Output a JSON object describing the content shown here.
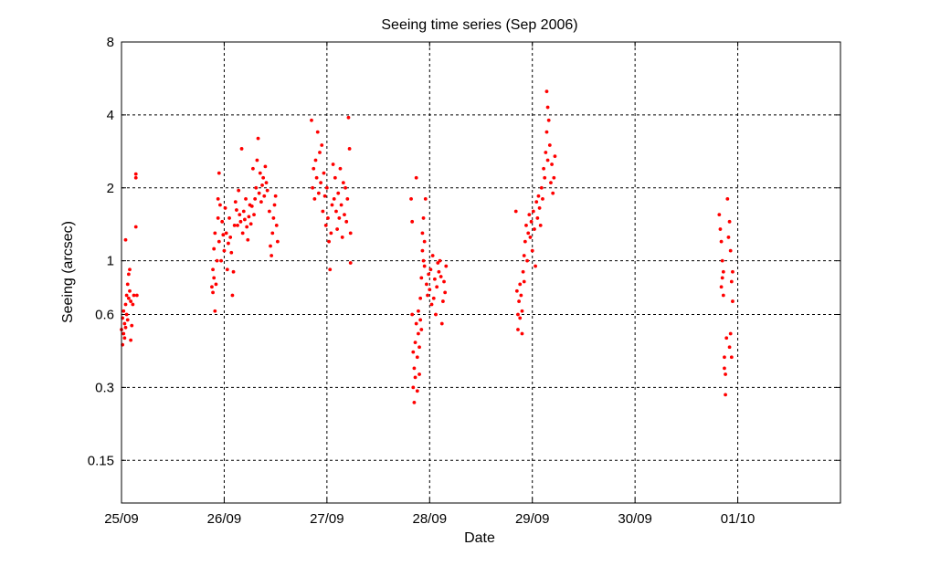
{
  "chart_data": {
    "type": "scatter",
    "title": "Seeing time series (Sep 2006)",
    "xlabel": "Date",
    "ylabel": "Seeing (arcsec)",
    "x_ticks": [
      "25/09",
      "26/09",
      "27/09",
      "28/09",
      "29/09",
      "30/09",
      "01/10"
    ],
    "x_tick_days": [
      0,
      1,
      2,
      3,
      4,
      5,
      6
    ],
    "xlim_days": [
      0,
      7
    ],
    "x_start_date": "25/09",
    "y_scale": "log2",
    "y_ticks": [
      0.15,
      0.3,
      0.6,
      1,
      2,
      4,
      8
    ],
    "y_tick_labels": [
      "0.15",
      "0.3",
      "0.6",
      "1",
      "2",
      "4",
      "8"
    ],
    "ylim": [
      0.1,
      8
    ],
    "grid": true,
    "marker_color": "#ff0000",
    "series": [
      {
        "name": "",
        "points": [
          [
            0.0,
            0.52
          ],
          [
            0.01,
            0.45
          ],
          [
            0.01,
            0.58
          ],
          [
            0.02,
            0.5
          ],
          [
            0.02,
            0.62
          ],
          [
            0.03,
            0.48
          ],
          [
            0.03,
            0.55
          ],
          [
            0.04,
            0.53
          ],
          [
            0.04,
            0.66
          ],
          [
            0.05,
            0.6
          ],
          [
            0.05,
            0.72
          ],
          [
            0.06,
            0.57
          ],
          [
            0.06,
            0.8
          ],
          [
            0.07,
            0.7
          ],
          [
            0.07,
            0.88
          ],
          [
            0.08,
            0.75
          ],
          [
            0.08,
            0.92
          ],
          [
            0.09,
            0.68
          ],
          [
            0.09,
            0.47
          ],
          [
            0.1,
            0.54
          ],
          [
            0.11,
            0.66
          ],
          [
            0.12,
            0.72
          ],
          [
            0.04,
            1.22
          ],
          [
            0.14,
            2.2
          ],
          [
            0.14,
            2.28
          ],
          [
            0.14,
            1.38
          ],
          [
            0.15,
            0.72
          ],
          [
            0.88,
            0.78
          ],
          [
            0.89,
            0.74
          ],
          [
            0.89,
            0.92
          ],
          [
            0.9,
            1.12
          ],
          [
            0.9,
            0.85
          ],
          [
            0.91,
            0.62
          ],
          [
            0.91,
            1.3
          ],
          [
            0.92,
            0.8
          ],
          [
            0.93,
            1.0
          ],
          [
            0.94,
            1.5
          ],
          [
            0.94,
            1.8
          ],
          [
            0.95,
            2.3
          ],
          [
            0.95,
            1.2
          ],
          [
            0.96,
            1.7
          ],
          [
            0.97,
            1.0
          ],
          [
            0.98,
            1.45
          ],
          [
            0.99,
            1.28
          ],
          [
            1.0,
            1.1
          ],
          [
            1.01,
            1.65
          ],
          [
            1.02,
            1.3
          ],
          [
            1.03,
            0.92
          ],
          [
            1.04,
            1.18
          ],
          [
            1.05,
            1.5
          ],
          [
            1.06,
            1.25
          ],
          [
            1.07,
            1.08
          ],
          [
            1.08,
            0.72
          ],
          [
            1.09,
            0.9
          ],
          [
            1.1,
            1.4
          ],
          [
            1.11,
            1.75
          ],
          [
            1.12,
            1.62
          ],
          [
            1.13,
            1.4
          ],
          [
            1.14,
            1.95
          ],
          [
            1.15,
            1.55
          ],
          [
            1.16,
            1.45
          ],
          [
            1.17,
            2.9
          ],
          [
            1.18,
            1.3
          ],
          [
            1.19,
            1.6
          ],
          [
            1.2,
            1.48
          ],
          [
            1.21,
            1.8
          ],
          [
            1.22,
            1.38
          ],
          [
            1.23,
            1.22
          ],
          [
            1.24,
            1.52
          ],
          [
            1.25,
            1.7
          ],
          [
            1.26,
            1.42
          ],
          [
            1.27,
            1.68
          ],
          [
            1.28,
            2.4
          ],
          [
            1.29,
            1.55
          ],
          [
            1.3,
            1.8
          ],
          [
            1.31,
            2.0
          ],
          [
            1.32,
            2.6
          ],
          [
            1.33,
            3.2
          ],
          [
            1.34,
            1.9
          ],
          [
            1.35,
            2.3
          ],
          [
            1.36,
            1.75
          ],
          [
            1.37,
            2.05
          ],
          [
            1.38,
            2.2
          ],
          [
            1.39,
            1.85
          ],
          [
            1.4,
            2.45
          ],
          [
            1.41,
            2.1
          ],
          [
            1.42,
            1.95
          ],
          [
            1.44,
            1.6
          ],
          [
            1.45,
            1.15
          ],
          [
            1.46,
            1.05
          ],
          [
            1.47,
            1.3
          ],
          [
            1.48,
            1.5
          ],
          [
            1.49,
            1.7
          ],
          [
            1.5,
            1.85
          ],
          [
            1.51,
            1.4
          ],
          [
            1.52,
            1.2
          ],
          [
            1.85,
            3.8
          ],
          [
            1.86,
            2.0
          ],
          [
            1.87,
            2.4
          ],
          [
            1.88,
            1.8
          ],
          [
            1.89,
            2.6
          ],
          [
            1.9,
            2.2
          ],
          [
            1.91,
            3.4
          ],
          [
            1.92,
            1.9
          ],
          [
            1.93,
            2.8
          ],
          [
            1.94,
            2.1
          ],
          [
            1.95,
            3.0
          ],
          [
            1.96,
            1.6
          ],
          [
            1.97,
            2.3
          ],
          [
            1.98,
            1.85
          ],
          [
            1.99,
            1.4
          ],
          [
            2.0,
            2.0
          ],
          [
            2.01,
            1.5
          ],
          [
            2.02,
            1.2
          ],
          [
            2.03,
            0.92
          ],
          [
            2.04,
            1.3
          ],
          [
            2.05,
            1.7
          ],
          [
            2.06,
            2.5
          ],
          [
            2.07,
            1.8
          ],
          [
            2.08,
            2.2
          ],
          [
            2.09,
            1.6
          ],
          [
            2.1,
            1.35
          ],
          [
            2.11,
            1.9
          ],
          [
            2.12,
            1.5
          ],
          [
            2.13,
            2.4
          ],
          [
            2.14,
            1.7
          ],
          [
            2.15,
            1.25
          ],
          [
            2.16,
            2.1
          ],
          [
            2.17,
            1.55
          ],
          [
            2.18,
            2.0
          ],
          [
            2.19,
            1.45
          ],
          [
            2.2,
            1.8
          ],
          [
            2.21,
            3.9
          ],
          [
            2.22,
            2.9
          ],
          [
            2.23,
            1.3
          ],
          [
            2.23,
            0.98
          ],
          [
            2.82,
            1.8
          ],
          [
            2.83,
            1.45
          ],
          [
            2.83,
            0.6
          ],
          [
            2.84,
            0.42
          ],
          [
            2.84,
            0.3
          ],
          [
            2.85,
            0.36
          ],
          [
            2.85,
            0.26
          ],
          [
            2.86,
            0.33
          ],
          [
            2.86,
            0.46
          ],
          [
            2.87,
            0.55
          ],
          [
            2.87,
            2.2
          ],
          [
            2.88,
            0.29
          ],
          [
            2.88,
            0.4
          ],
          [
            2.89,
            0.5
          ],
          [
            2.89,
            0.62
          ],
          [
            2.9,
            0.34
          ],
          [
            2.9,
            0.44
          ],
          [
            2.91,
            0.57
          ],
          [
            2.91,
            0.7
          ],
          [
            2.92,
            0.52
          ],
          [
            2.92,
            0.85
          ],
          [
            2.93,
            1.1
          ],
          [
            2.93,
            1.3
          ],
          [
            2.94,
            1.0
          ],
          [
            2.94,
            1.5
          ],
          [
            2.95,
            1.2
          ],
          [
            2.95,
            0.95
          ],
          [
            2.96,
            1.8
          ],
          [
            2.97,
            0.8
          ],
          [
            2.98,
            0.72
          ],
          [
            2.99,
            0.88
          ],
          [
            3.0,
            0.76
          ],
          [
            3.01,
            0.92
          ],
          [
            3.02,
            0.66
          ],
          [
            3.03,
            1.05
          ],
          [
            3.04,
            0.7
          ],
          [
            3.05,
            0.84
          ],
          [
            3.06,
            0.6
          ],
          [
            3.07,
            0.78
          ],
          [
            3.08,
            0.98
          ],
          [
            3.09,
            0.9
          ],
          [
            3.1,
            1.0
          ],
          [
            3.11,
            0.86
          ],
          [
            3.12,
            0.55
          ],
          [
            3.13,
            0.68
          ],
          [
            3.14,
            0.82
          ],
          [
            3.15,
            0.74
          ],
          [
            3.16,
            0.95
          ],
          [
            3.84,
            1.6
          ],
          [
            3.85,
            0.75
          ],
          [
            3.86,
            0.6
          ],
          [
            3.86,
            0.52
          ],
          [
            3.87,
            0.68
          ],
          [
            3.88,
            0.8
          ],
          [
            3.88,
            0.58
          ],
          [
            3.89,
            0.72
          ],
          [
            3.9,
            0.62
          ],
          [
            3.9,
            0.5
          ],
          [
            3.91,
            0.9
          ],
          [
            3.92,
            1.05
          ],
          [
            3.92,
            0.82
          ],
          [
            3.93,
            1.2
          ],
          [
            3.94,
            1.4
          ],
          [
            3.95,
            1.0
          ],
          [
            3.96,
            1.3
          ],
          [
            3.97,
            1.55
          ],
          [
            3.98,
            1.25
          ],
          [
            3.99,
            1.45
          ],
          [
            4.0,
            1.1
          ],
          [
            4.01,
            1.6
          ],
          [
            4.02,
            1.35
          ],
          [
            4.03,
            0.95
          ],
          [
            4.04,
            1.75
          ],
          [
            4.05,
            1.5
          ],
          [
            4.06,
            1.85
          ],
          [
            4.07,
            1.65
          ],
          [
            4.08,
            1.4
          ],
          [
            4.09,
            2.0
          ],
          [
            4.1,
            1.8
          ],
          [
            4.11,
            2.4
          ],
          [
            4.12,
            2.2
          ],
          [
            4.13,
            2.8
          ],
          [
            4.14,
            3.4
          ],
          [
            4.15,
            2.6
          ],
          [
            4.16,
            3.8
          ],
          [
            4.17,
            3.0
          ],
          [
            4.18,
            2.1
          ],
          [
            4.19,
            2.5
          ],
          [
            4.14,
            5.0
          ],
          [
            4.15,
            4.3
          ],
          [
            4.2,
            1.9
          ],
          [
            4.21,
            2.2
          ],
          [
            4.22,
            2.7
          ],
          [
            5.82,
            1.55
          ],
          [
            5.83,
            1.35
          ],
          [
            5.84,
            1.2
          ],
          [
            5.84,
            0.78
          ],
          [
            5.85,
            0.85
          ],
          [
            5.85,
            1.0
          ],
          [
            5.86,
            0.72
          ],
          [
            5.86,
            0.9
          ],
          [
            5.87,
            0.4
          ],
          [
            5.87,
            0.36
          ],
          [
            5.88,
            0.28
          ],
          [
            5.88,
            0.34
          ],
          [
            5.89,
            0.48
          ],
          [
            5.9,
            1.8
          ],
          [
            5.91,
            1.25
          ],
          [
            5.92,
            1.45
          ],
          [
            5.93,
            1.1
          ],
          [
            5.94,
            0.82
          ],
          [
            5.95,
            0.68
          ],
          [
            5.95,
            0.9
          ],
          [
            5.92,
            0.44
          ],
          [
            5.93,
            0.5
          ],
          [
            5.94,
            0.4
          ]
        ]
      }
    ]
  }
}
